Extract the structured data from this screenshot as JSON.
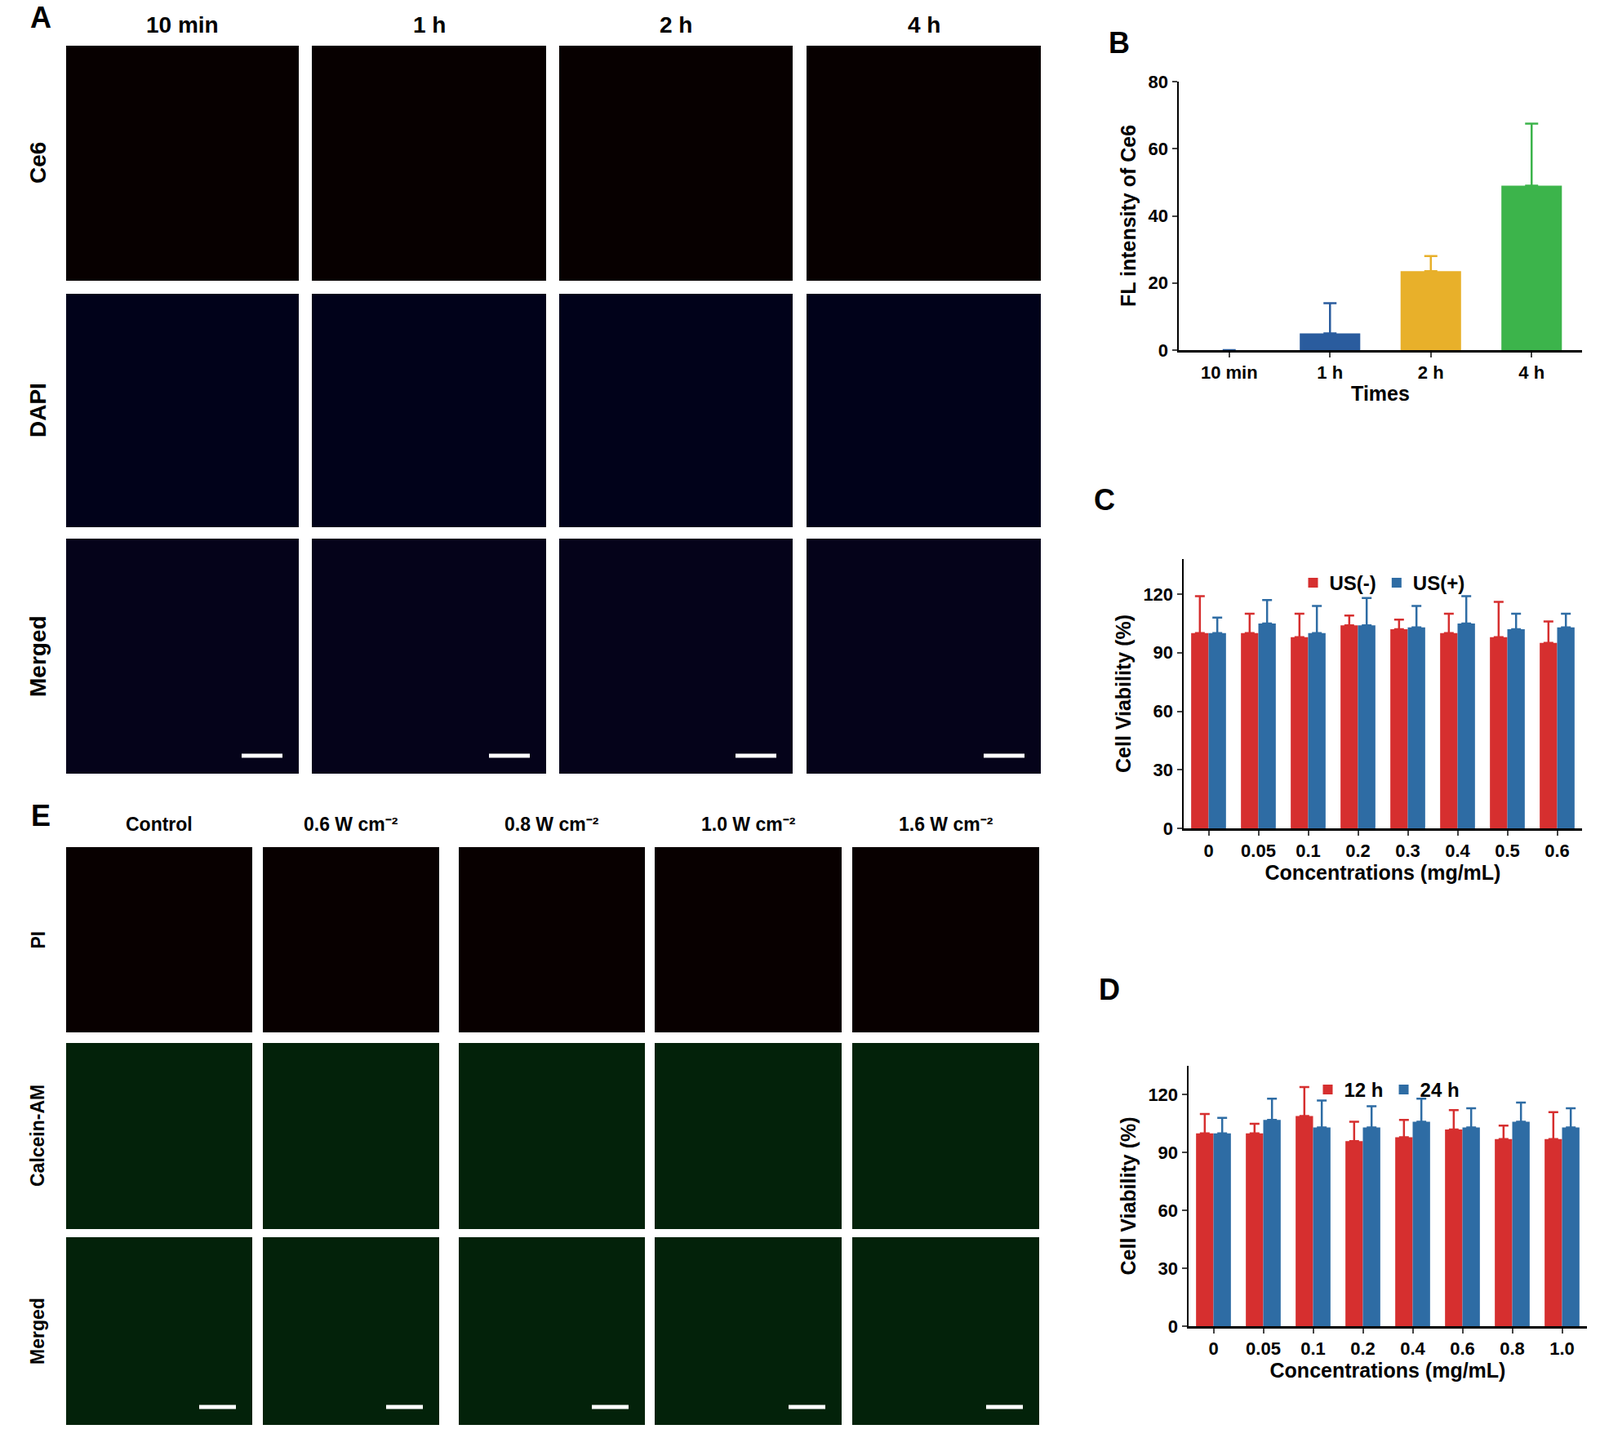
{
  "chart_data": [
    {
      "panel": "B",
      "type": "bar",
      "xlabel": "Times",
      "ylabel": "FL intensity of Ce6",
      "categories": [
        "10 min",
        "1 h",
        "2 h",
        "4 h"
      ],
      "values": [
        0,
        5,
        23.5,
        49
      ],
      "errors": [
        0,
        9,
        4.5,
        18.5
      ],
      "colors": [
        "#2a5c9e",
        "#2a5c9e",
        "#e8b02a",
        "#3cb44b"
      ],
      "ylim": [
        0,
        80
      ],
      "yticks": [
        0,
        20,
        40,
        60,
        80
      ],
      "grid": false
    },
    {
      "panel": "C",
      "type": "bar",
      "xlabel": "Concentrations (mg/mL)",
      "ylabel": "Cell Viability (%)",
      "categories": [
        "0",
        "0.05",
        "0.1",
        "0.2",
        "0.3",
        "0.4",
        "0.5",
        "0.6"
      ],
      "series": [
        {
          "name": "US(-)",
          "color": "#d62f2f",
          "values": [
            100,
            100,
            98,
            104,
            102,
            100,
            98,
            95
          ],
          "errors": [
            19,
            10,
            12,
            5,
            5,
            10,
            18,
            11
          ]
        },
        {
          "name": "US(+)",
          "color": "#2e6ca4",
          "values": [
            100,
            105,
            100,
            104,
            103,
            105,
            102,
            103
          ],
          "errors": [
            8,
            12,
            14,
            14,
            11,
            14,
            8,
            7
          ]
        }
      ],
      "ylim": [
        0,
        138
      ],
      "yticks": [
        0,
        30,
        60,
        90,
        120
      ],
      "grid": false,
      "legend": "top"
    },
    {
      "panel": "D",
      "type": "bar",
      "xlabel": "Concentrations (mg/mL)",
      "ylabel": "Cell Viability (%)",
      "categories": [
        "0",
        "0.05",
        "0.1",
        "0.2",
        "0.4",
        "0.6",
        "0.8",
        "1.0"
      ],
      "series": [
        {
          "name": "12 h",
          "color": "#d62f2f",
          "values": [
            100,
            100,
            109,
            96,
            98,
            102,
            97,
            97
          ],
          "errors": [
            10,
            5,
            15,
            10,
            9,
            10,
            7,
            14
          ]
        },
        {
          "name": "24 h",
          "color": "#2e6ca4",
          "values": [
            100,
            107,
            103,
            103,
            106,
            103,
            106,
            103
          ],
          "errors": [
            8,
            11,
            14,
            11,
            12,
            10,
            10,
            10
          ]
        }
      ],
      "ylim": [
        0,
        135
      ],
      "yticks": [
        0,
        30,
        60,
        90,
        120
      ],
      "grid": false,
      "legend": "top"
    }
  ],
  "image_panels": [
    {
      "panel": "A",
      "columns": [
        "10 min",
        "1 h",
        "2 h",
        "4 h"
      ],
      "rows": [
        "Ce6",
        "DAPI",
        "Merged"
      ]
    },
    {
      "panel": "E",
      "columns": [
        "Control",
        "0.6 W cm⁻²",
        "0.8 W cm⁻²",
        "1.0 W cm⁻²",
        "1.6 W cm⁻²"
      ],
      "rows": [
        "PI",
        "Calcein-AM",
        "Merged"
      ]
    }
  ]
}
